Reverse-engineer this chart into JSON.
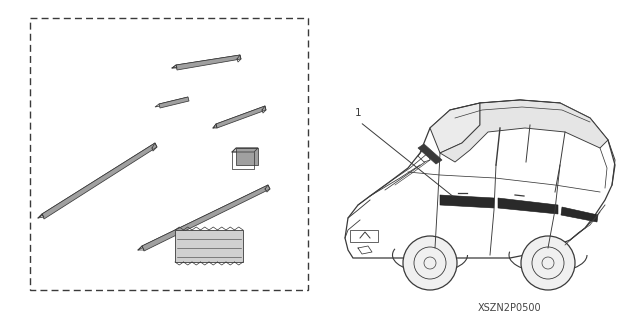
{
  "background_color": "#ffffff",
  "part_number": "XSZN2P0500",
  "label_1": "1",
  "fig_width": 6.4,
  "fig_height": 3.19,
  "dpi": 100,
  "line_color": "#3a3a3a",
  "dark_fill": "#5a5a5a",
  "light_fill": "#d0d0d0",
  "mid_fill": "#a0a0a0"
}
